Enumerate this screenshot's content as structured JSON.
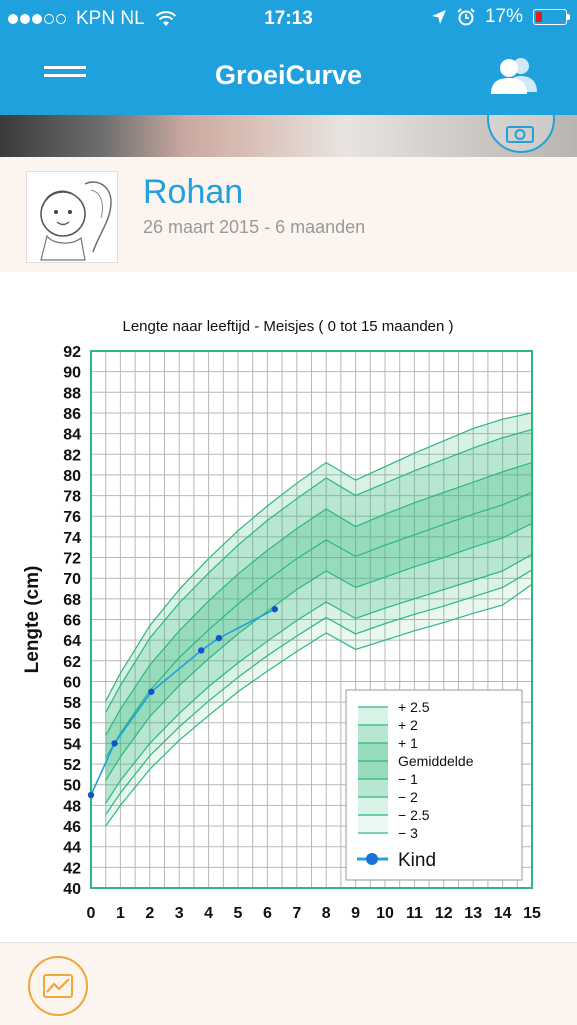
{
  "status_bar": {
    "carrier": "KPN NL",
    "time": "17:13",
    "battery": "17%",
    "signal_filled": 3,
    "signal_total": 5
  },
  "nav": {
    "title": "GroeiCurve",
    "menu_icon": "hamburger-icon",
    "users_icon": "users-icon"
  },
  "profile": {
    "name": "Rohan",
    "subtitle": "26 maart 2015 - 6 maanden"
  },
  "colors": {
    "brand": "#1fa1dd",
    "chart_green": "#2db87a",
    "accent_orange": "#f2a53a",
    "child_line": "#1fa1dd"
  },
  "chart_data": {
    "type": "line",
    "title": "Lengte naar leeftijd - Meisjes ( 0 tot 15 maanden )",
    "ylabel": "Lengte (cm)",
    "xlabel": "",
    "xlim": [
      0,
      15
    ],
    "ylim": [
      40,
      92
    ],
    "x_ticks": [
      "0",
      "1",
      "2",
      "3",
      "4",
      "5",
      "6",
      "7",
      "8",
      "9",
      "10",
      "11",
      "12",
      "13",
      "14",
      "15"
    ],
    "y_ticks": [
      "40",
      "42",
      "44",
      "46",
      "48",
      "50",
      "52",
      "54",
      "56",
      "58",
      "60",
      "62",
      "64",
      "66",
      "68",
      "70",
      "72",
      "74",
      "76",
      "78",
      "80",
      "82",
      "84",
      "86",
      "88",
      "90",
      "92"
    ],
    "grid": true,
    "legend_position": "bottom-right",
    "bands_x": [
      0.5,
      1,
      2,
      3,
      4,
      5,
      6,
      7,
      8,
      9,
      10,
      11,
      12,
      13,
      14,
      15
    ],
    "bands": [
      {
        "name": "+ 2.5",
        "values": [
          58.1,
          60.8,
          65.4,
          68.9,
          71.9,
          74.6,
          77.0,
          79.2,
          81.2,
          79.5,
          80.8,
          82.1,
          83.3,
          84.5,
          85.4,
          86.0
        ]
      },
      {
        "name": "+ 2",
        "values": [
          57.0,
          59.6,
          64.2,
          67.6,
          70.5,
          73.2,
          75.6,
          77.7,
          79.7,
          78.0,
          79.2,
          80.4,
          81.5,
          82.6,
          83.6,
          84.4
        ]
      },
      {
        "name": "+ 1",
        "values": [
          54.8,
          57.3,
          61.6,
          64.9,
          67.8,
          70.4,
          72.7,
          74.8,
          76.7,
          75.0,
          76.2,
          77.3,
          78.3,
          79.3,
          80.3,
          81.2
        ]
      },
      {
        "name": "Gemiddelde",
        "values": [
          52.6,
          55.0,
          59.1,
          62.3,
          65.0,
          67.5,
          69.8,
          71.9,
          73.7,
          72.1,
          73.2,
          74.2,
          75.2,
          76.2,
          77.1,
          78.3
        ]
      },
      {
        "name": "− 1",
        "values": [
          50.4,
          52.7,
          56.6,
          59.6,
          62.2,
          64.6,
          66.8,
          68.9,
          70.7,
          69.1,
          70.1,
          71.1,
          72.0,
          73.0,
          73.9,
          75.3
        ]
      },
      {
        "name": "− 2",
        "values": [
          48.2,
          50.4,
          54.0,
          56.9,
          59.5,
          61.8,
          63.9,
          65.9,
          67.7,
          66.1,
          67.1,
          68.0,
          68.9,
          69.8,
          70.7,
          72.3
        ]
      },
      {
        "name": "− 2.5",
        "values": [
          47.1,
          49.2,
          52.8,
          55.6,
          58.1,
          60.4,
          62.5,
          64.4,
          66.2,
          64.6,
          65.6,
          66.5,
          67.3,
          68.2,
          69.1,
          70.8
        ]
      },
      {
        "name": "− 3",
        "values": [
          46.0,
          48.0,
          51.5,
          54.3,
          56.7,
          59.0,
          61.0,
          62.9,
          64.7,
          63.1,
          64.0,
          64.9,
          65.7,
          66.6,
          67.4,
          69.4
        ]
      }
    ],
    "series": [
      {
        "name": "Kind",
        "x": [
          0,
          0.8,
          2.05,
          3.75,
          4.35,
          6.25
        ],
        "y": [
          49,
          54,
          59,
          63,
          64.2,
          67
        ]
      }
    ]
  }
}
